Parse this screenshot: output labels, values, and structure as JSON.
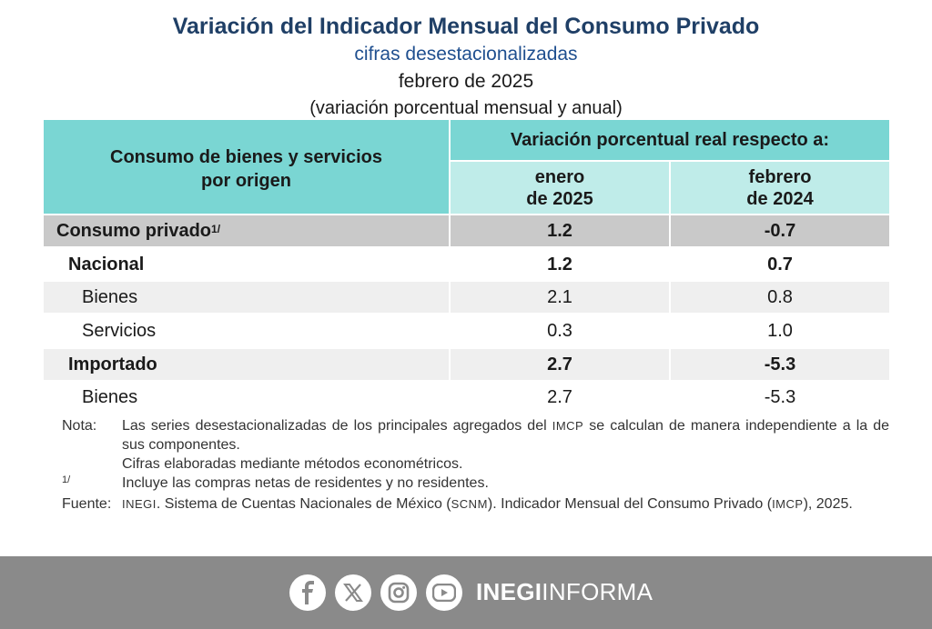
{
  "header": {
    "title": "Variación del Indicador Mensual del Consumo Privado",
    "subtitle": "cifras desestacionalizadas",
    "period": "febrero de 2025",
    "unit_note": "(variación porcentual mensual y anual)"
  },
  "table": {
    "col_label_line1": "Consumo de bienes y servicios",
    "col_label_line2": "por origen",
    "group_header": "Variación porcentual real respecto a:",
    "col1_line1": "enero",
    "col1_line2": "de 2025",
    "col2_line1": "febrero",
    "col2_line2": "de 2024",
    "rows": [
      {
        "label": "Consumo privado",
        "footnote": "1/",
        "v1": "1.2",
        "v2": "-0.7"
      },
      {
        "label": "Nacional",
        "v1": "1.2",
        "v2": "0.7"
      },
      {
        "label": "Bienes",
        "v1": "2.1",
        "v2": "0.8"
      },
      {
        "label": "Servicios",
        "v1": "0.3",
        "v2": "1.0"
      },
      {
        "label": "Importado",
        "v1": "2.7",
        "v2": "-5.3"
      },
      {
        "label": "Bienes",
        "v1": "2.7",
        "v2": "-5.3"
      }
    ]
  },
  "notes": {
    "nota_label": "Nota:",
    "nota_text_a": "Las series desestacionalizadas de los principales agregados del",
    "nota_abbr": "IMCP",
    "nota_text_b": "se calculan de manera independiente a la de sus componentes.",
    "nota_line2": "Cifras elaboradas mediante métodos econométricos.",
    "footnote_mark": "1/",
    "footnote_text": "Incluye las compras netas de residentes y no residentes.",
    "fuente_label": "Fuente:",
    "fuente_abbr1": "INEGI",
    "fuente_text_a": ". Sistema de Cuentas Nacionales de México (",
    "fuente_abbr2": "SCNM",
    "fuente_text_b": "). Indicador Mensual del Consumo Privado (",
    "fuente_abbr3": "IMCP",
    "fuente_text_c": "), 2025."
  },
  "footer": {
    "brand_bold": "INEGI",
    "brand_light": "INFORMA",
    "icons": [
      "facebook-icon",
      "x-icon",
      "instagram-icon",
      "youtube-icon"
    ],
    "background": "#8a8a8a"
  }
}
